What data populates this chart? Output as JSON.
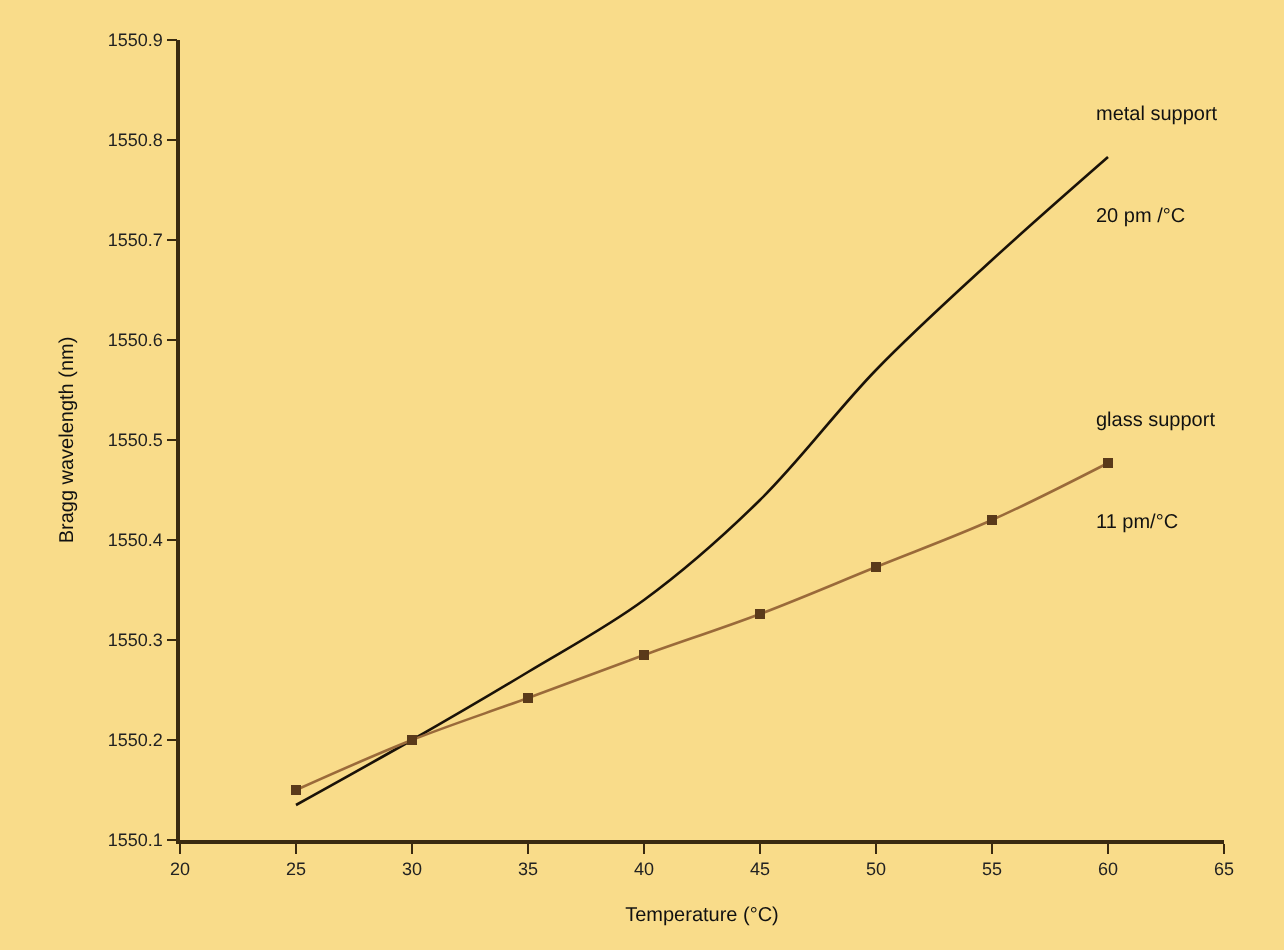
{
  "chart_data": {
    "type": "line",
    "xlabel": "Temperature (°C)",
    "ylabel": "Bragg wavelength (nm)",
    "x": [
      25,
      30,
      35,
      40,
      45,
      50,
      55,
      60
    ],
    "series": [
      {
        "name": "metal support",
        "color": "#1a1208",
        "values": [
          1550.135,
          1550.2,
          1550.268,
          1550.34,
          1550.44,
          1550.57,
          1550.68,
          1550.783
        ],
        "marker": "none"
      },
      {
        "name": "glass support",
        "color": "#9a6a3a",
        "values": [
          1550.15,
          1550.2,
          1550.242,
          1550.285,
          1550.326,
          1550.373,
          1550.42,
          1550.477
        ],
        "marker": "square"
      }
    ],
    "annotations": [
      "20 pm /°C",
      "11 pm/°C"
    ],
    "xlim": [
      20,
      65
    ],
    "xticks": [
      20,
      25,
      30,
      35,
      40,
      45,
      50,
      55,
      60,
      65
    ],
    "ylim": [
      1550.1,
      1550.9
    ],
    "yticks": [
      1550.1,
      1550.2,
      1550.3,
      1550.4,
      1550.5,
      1550.6,
      1550.7,
      1550.8,
      1550.9
    ],
    "grid": false,
    "legend": false,
    "line_style": "solid"
  }
}
